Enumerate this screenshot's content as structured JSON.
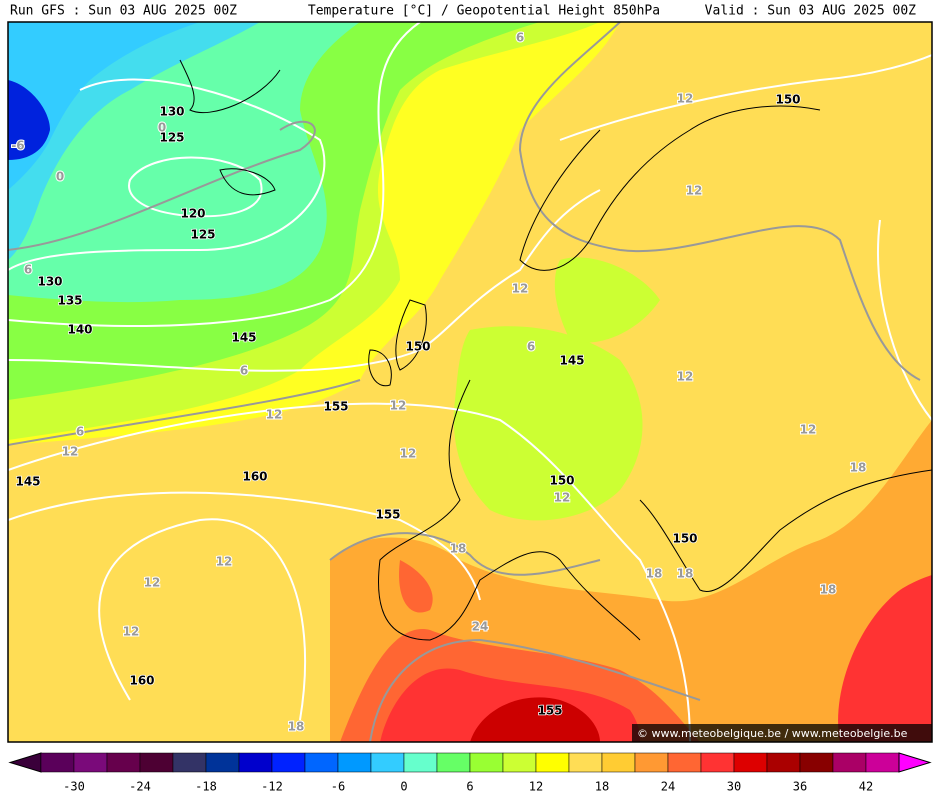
{
  "header": {
    "run": "Run GFS : Sun 03 AUG 2025 00Z",
    "title": "Temperature [°C] / Geopotential Height 850hPa",
    "valid": "Valid : Sun 03 AUG 2025 00Z"
  },
  "height_labels": [
    "130",
    "125",
    "120",
    "125",
    "130",
    "135",
    "140",
    "145",
    "150",
    "145",
    "155",
    "160",
    "145",
    "150",
    "155",
    "150",
    "160",
    "155",
    "150"
  ],
  "temperature_labels": [
    "6",
    "0",
    "0",
    "-6",
    "6",
    "12",
    "12",
    "12",
    "6",
    "12",
    "6",
    "12",
    "12",
    "6",
    "12",
    "12",
    "12",
    "18",
    "12",
    "12",
    "18",
    "18",
    "18",
    "12",
    "18",
    "12",
    "24",
    "18"
  ],
  "colorbar": {
    "ticks": [
      "-30",
      "-24",
      "-18",
      "-12",
      "-6",
      "0",
      "6",
      "12",
      "18",
      "24",
      "30",
      "36",
      "42"
    ]
  },
  "watermark": "© www.meteobelgique.be / www.meteobelgie.be"
}
